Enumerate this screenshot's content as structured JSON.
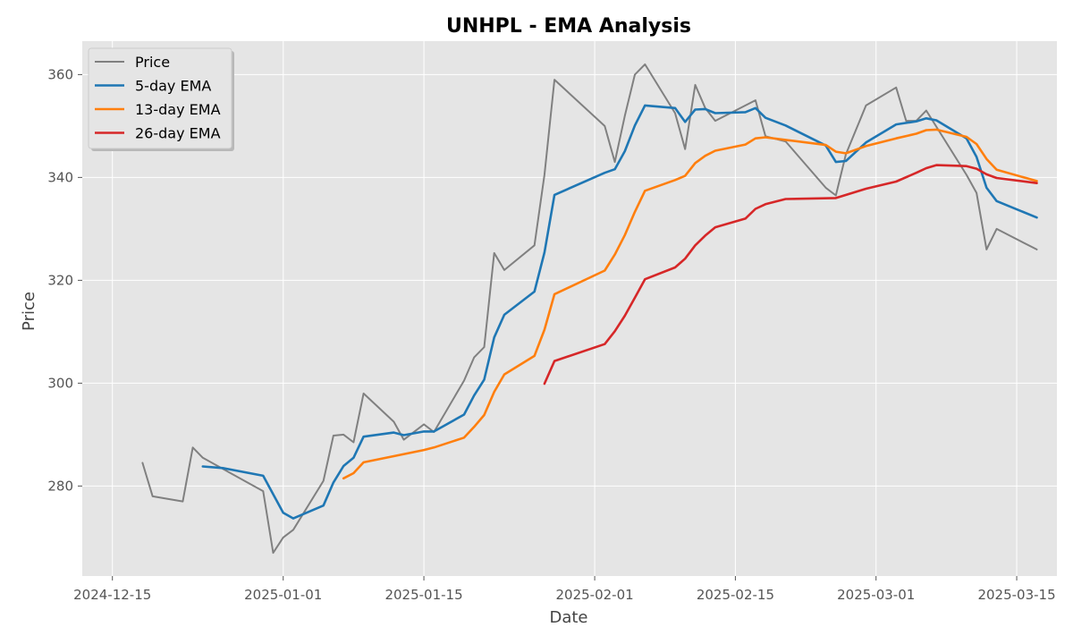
{
  "chart_data": {
    "type": "line",
    "title": "UNHPL - EMA Analysis",
    "xlabel": "Date",
    "ylabel": "Price",
    "xlim": [
      "2024-12-12",
      "2025-03-19"
    ],
    "ylim": [
      262.5,
      366.5
    ],
    "x_ticks": [
      "2024-12-15",
      "2025-01-01",
      "2025-01-15",
      "2025-02-01",
      "2025-02-15",
      "2025-03-01",
      "2025-03-15"
    ],
    "y_ticks": [
      280,
      300,
      320,
      340,
      360
    ],
    "grid": true,
    "legend_position": "top-left",
    "series": [
      {
        "name": "Price",
        "color": "#808080",
        "points": [
          [
            "2024-12-18",
            284.5
          ],
          [
            "2024-12-19",
            278.0
          ],
          [
            "2024-12-22",
            277.0
          ],
          [
            "2024-12-23",
            287.5
          ],
          [
            "2024-12-24",
            285.5
          ],
          [
            "2024-12-30",
            279.0
          ],
          [
            "2024-12-31",
            267.0
          ],
          [
            "2025-01-01",
            270.0
          ],
          [
            "2025-01-02",
            271.5
          ],
          [
            "2025-01-05",
            281.0
          ],
          [
            "2025-01-06",
            289.8
          ],
          [
            "2025-01-07",
            290.0
          ],
          [
            "2025-01-08",
            288.5
          ],
          [
            "2025-01-09",
            298.0
          ],
          [
            "2025-01-12",
            292.5
          ],
          [
            "2025-01-13",
            289.0
          ],
          [
            "2025-01-15",
            292.0
          ],
          [
            "2025-01-16",
            290.5
          ],
          [
            "2025-01-19",
            300.5
          ],
          [
            "2025-01-20",
            305.0
          ],
          [
            "2025-01-21",
            307.0
          ],
          [
            "2025-01-22",
            325.3
          ],
          [
            "2025-01-23",
            322.0
          ],
          [
            "2025-01-26",
            326.8
          ],
          [
            "2025-01-27",
            340.5
          ],
          [
            "2025-01-28",
            359.0
          ],
          [
            "2025-02-02",
            350.0
          ],
          [
            "2025-02-03",
            343.0
          ],
          [
            "2025-02-04",
            352.0
          ],
          [
            "2025-02-05",
            360.0
          ],
          [
            "2025-02-06",
            362.0
          ],
          [
            "2025-02-09",
            352.5
          ],
          [
            "2025-02-10",
            345.5
          ],
          [
            "2025-02-11",
            358.0
          ],
          [
            "2025-02-12",
            353.5
          ],
          [
            "2025-02-13",
            351.0
          ],
          [
            "2025-02-17",
            355.0
          ],
          [
            "2025-02-18",
            348.0
          ],
          [
            "2025-02-20",
            347.0
          ],
          [
            "2025-02-24",
            338.0
          ],
          [
            "2025-02-25",
            336.5
          ],
          [
            "2025-02-26",
            344.5
          ],
          [
            "2025-02-28",
            354.0
          ],
          [
            "2025-03-03",
            357.5
          ],
          [
            "2025-03-04",
            351.0
          ],
          [
            "2025-03-05",
            351.0
          ],
          [
            "2025-03-06",
            353.0
          ],
          [
            "2025-03-10",
            340.5
          ],
          [
            "2025-03-11",
            337.0
          ],
          [
            "2025-03-12",
            326.0
          ],
          [
            "2025-03-13",
            330.0
          ],
          [
            "2025-03-17",
            326.0
          ]
        ]
      },
      {
        "name": "5-day EMA",
        "color": "#1f77b4",
        "points": [
          [
            "2024-12-24",
            283.8
          ],
          [
            "2024-12-26",
            283.5
          ],
          [
            "2024-12-30",
            282.0
          ],
          [
            "2025-01-01",
            274.8
          ],
          [
            "2025-01-02",
            273.7
          ],
          [
            "2025-01-05",
            276.2
          ],
          [
            "2025-01-06",
            280.7
          ],
          [
            "2025-01-07",
            283.9
          ],
          [
            "2025-01-08",
            285.5
          ],
          [
            "2025-01-09",
            289.6
          ],
          [
            "2025-01-12",
            290.4
          ],
          [
            "2025-01-13",
            289.9
          ],
          [
            "2025-01-15",
            290.6
          ],
          [
            "2025-01-16",
            290.6
          ],
          [
            "2025-01-19",
            293.9
          ],
          [
            "2025-01-20",
            297.6
          ],
          [
            "2025-01-21",
            300.7
          ],
          [
            "2025-01-22",
            308.9
          ],
          [
            "2025-01-23",
            313.3
          ],
          [
            "2025-01-26",
            317.8
          ],
          [
            "2025-01-27",
            325.4
          ],
          [
            "2025-01-28",
            336.6
          ],
          [
            "2025-02-02",
            340.9
          ],
          [
            "2025-02-03",
            341.6
          ],
          [
            "2025-02-04",
            345.1
          ],
          [
            "2025-02-05",
            350.1
          ],
          [
            "2025-02-06",
            354.0
          ],
          [
            "2025-02-09",
            353.5
          ],
          [
            "2025-02-10",
            350.8
          ],
          [
            "2025-02-11",
            353.2
          ],
          [
            "2025-02-12",
            353.3
          ],
          [
            "2025-02-13",
            352.5
          ],
          [
            "2025-02-16",
            352.7
          ],
          [
            "2025-02-17",
            353.5
          ],
          [
            "2025-02-18",
            351.6
          ],
          [
            "2025-02-20",
            350.1
          ],
          [
            "2025-02-24",
            346.2
          ],
          [
            "2025-02-25",
            343.0
          ],
          [
            "2025-02-26",
            343.2
          ],
          [
            "2025-02-28",
            346.8
          ],
          [
            "2025-03-03",
            350.3
          ],
          [
            "2025-03-05",
            350.9
          ],
          [
            "2025-03-06",
            351.5
          ],
          [
            "2025-03-07",
            351.1
          ],
          [
            "2025-03-10",
            347.6
          ],
          [
            "2025-03-11",
            344.0
          ],
          [
            "2025-03-12",
            338.0
          ],
          [
            "2025-03-13",
            335.4
          ],
          [
            "2025-03-17",
            332.2
          ]
        ]
      },
      {
        "name": "13-day EMA",
        "color": "#ff7f0e",
        "points": [
          [
            "2025-01-07",
            281.5
          ],
          [
            "2025-01-08",
            282.5
          ],
          [
            "2025-01-09",
            284.6
          ],
          [
            "2025-01-12",
            285.8
          ],
          [
            "2025-01-15",
            287.0
          ],
          [
            "2025-01-16",
            287.5
          ],
          [
            "2025-01-19",
            289.4
          ],
          [
            "2025-01-20",
            291.5
          ],
          [
            "2025-01-21",
            293.8
          ],
          [
            "2025-01-22",
            298.3
          ],
          [
            "2025-01-23",
            301.7
          ],
          [
            "2025-01-26",
            305.3
          ],
          [
            "2025-01-27",
            310.4
          ],
          [
            "2025-01-28",
            317.3
          ],
          [
            "2025-02-02",
            321.9
          ],
          [
            "2025-02-03",
            325.0
          ],
          [
            "2025-02-04",
            328.8
          ],
          [
            "2025-02-05",
            333.3
          ],
          [
            "2025-02-06",
            337.4
          ],
          [
            "2025-02-09",
            339.5
          ],
          [
            "2025-02-10",
            340.3
          ],
          [
            "2025-02-11",
            342.8
          ],
          [
            "2025-02-12",
            344.2
          ],
          [
            "2025-02-13",
            345.2
          ],
          [
            "2025-02-16",
            346.4
          ],
          [
            "2025-02-17",
            347.6
          ],
          [
            "2025-02-18",
            347.8
          ],
          [
            "2025-02-20",
            347.3
          ],
          [
            "2025-02-24",
            346.3
          ],
          [
            "2025-02-25",
            345.0
          ],
          [
            "2025-02-26",
            344.7
          ],
          [
            "2025-02-28",
            346.1
          ],
          [
            "2025-03-03",
            347.6
          ],
          [
            "2025-03-05",
            348.5
          ],
          [
            "2025-03-06",
            349.2
          ],
          [
            "2025-03-07",
            349.3
          ],
          [
            "2025-03-10",
            347.9
          ],
          [
            "2025-03-11",
            346.5
          ],
          [
            "2025-03-12",
            343.6
          ],
          [
            "2025-03-13",
            341.5
          ],
          [
            "2025-03-17",
            339.3
          ]
        ]
      },
      {
        "name": "26-day EMA",
        "color": "#d62728",
        "points": [
          [
            "2025-01-27",
            299.9
          ],
          [
            "2025-01-28",
            304.3
          ],
          [
            "2025-02-02",
            307.6
          ],
          [
            "2025-02-03",
            310.1
          ],
          [
            "2025-02-04",
            313.1
          ],
          [
            "2025-02-05",
            316.6
          ],
          [
            "2025-02-06",
            320.2
          ],
          [
            "2025-02-09",
            322.5
          ],
          [
            "2025-02-10",
            324.2
          ],
          [
            "2025-02-11",
            326.8
          ],
          [
            "2025-02-12",
            328.7
          ],
          [
            "2025-02-13",
            330.3
          ],
          [
            "2025-02-16",
            332.0
          ],
          [
            "2025-02-17",
            333.9
          ],
          [
            "2025-02-18",
            334.8
          ],
          [
            "2025-02-20",
            335.8
          ],
          [
            "2025-02-25",
            336.0
          ],
          [
            "2025-02-28",
            337.8
          ],
          [
            "2025-03-03",
            339.2
          ],
          [
            "2025-03-05",
            340.9
          ],
          [
            "2025-03-06",
            341.8
          ],
          [
            "2025-03-07",
            342.4
          ],
          [
            "2025-03-10",
            342.2
          ],
          [
            "2025-03-11",
            341.7
          ],
          [
            "2025-03-12",
            340.6
          ],
          [
            "2025-03-13",
            339.9
          ],
          [
            "2025-03-17",
            338.9
          ]
        ]
      }
    ]
  }
}
